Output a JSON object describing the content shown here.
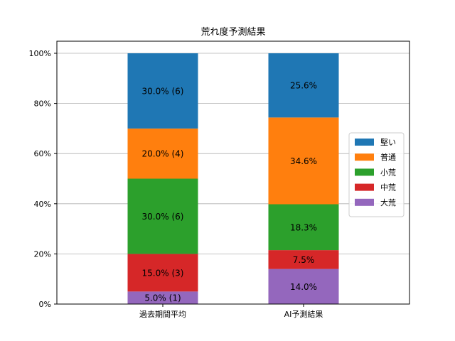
{
  "chart_data": {
    "type": "bar",
    "stacked": true,
    "title": "荒れ度予測結果",
    "categories": [
      "過去期間平均",
      "AI予測結果"
    ],
    "ylim": [
      0,
      100
    ],
    "yticks": [
      "0%",
      "20%",
      "40%",
      "60%",
      "80%",
      "100%"
    ],
    "grid": "horizontal",
    "legend_position": "center-right",
    "series": [
      {
        "name": "大荒",
        "color": "#9467bd",
        "values": [
          5.0,
          14.0
        ],
        "labels": [
          "5.0% (1)",
          "14.0%"
        ]
      },
      {
        "name": "中荒",
        "color": "#d62728",
        "values": [
          15.0,
          7.5
        ],
        "labels": [
          "15.0% (3)",
          "7.5%"
        ]
      },
      {
        "name": "小荒",
        "color": "#2ca02c",
        "values": [
          30.0,
          18.3
        ],
        "labels": [
          "30.0% (6)",
          "18.3%"
        ]
      },
      {
        "name": "普通",
        "color": "#ff7f0e",
        "values": [
          20.0,
          34.6
        ],
        "labels": [
          "20.0% (4)",
          "34.6%"
        ]
      },
      {
        "name": "堅い",
        "color": "#1f77b4",
        "values": [
          30.0,
          25.6
        ],
        "labels": [
          "30.0% (6)",
          "25.6%"
        ]
      }
    ],
    "legend_order": [
      "堅い",
      "普通",
      "小荒",
      "中荒",
      "大荒"
    ]
  }
}
